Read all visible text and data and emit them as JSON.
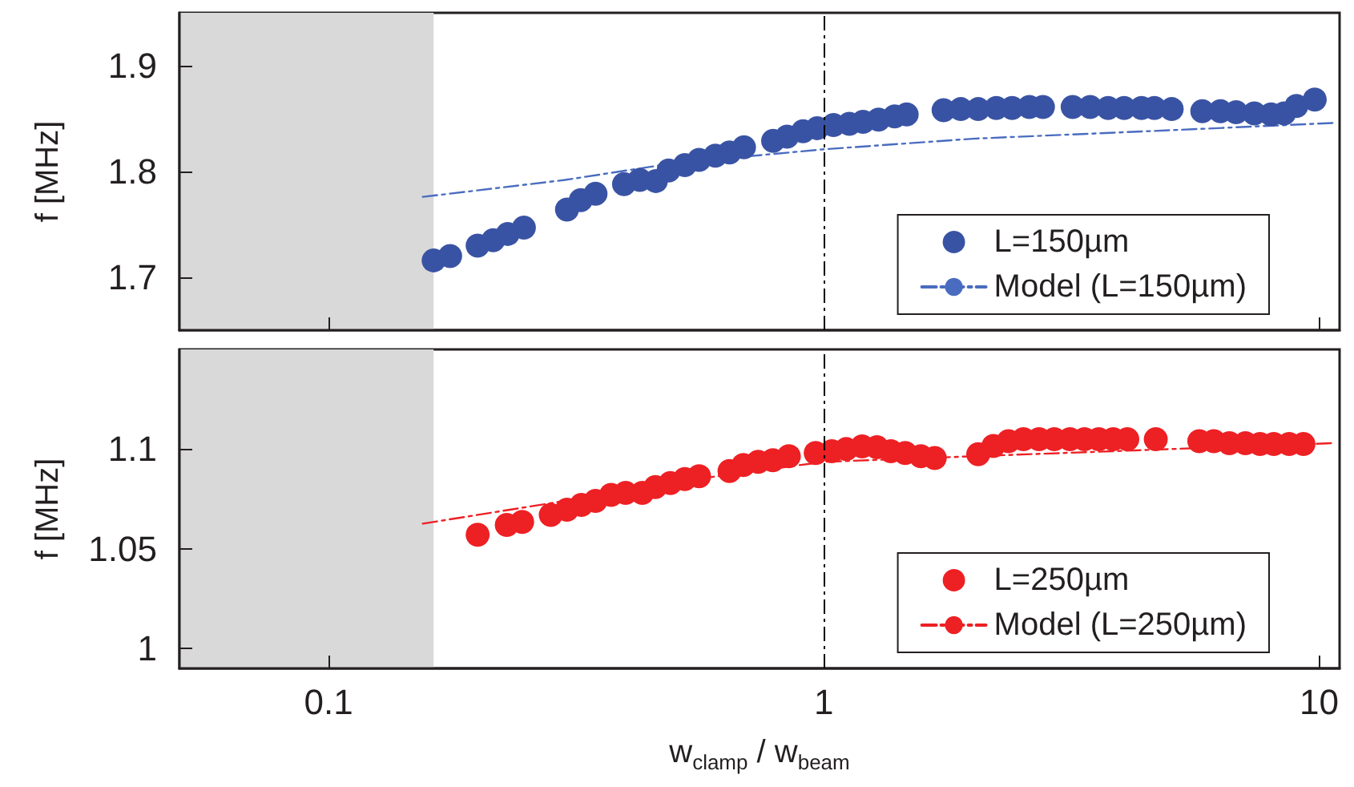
{
  "chart_data": [
    {
      "type": "scatter",
      "ylabel": "f [MHz]",
      "log": "x",
      "xlim": [
        0.05,
        11
      ],
      "xticks": [
        {
          "value": 0.1,
          "label": null
        },
        {
          "value": 1,
          "label": null
        },
        {
          "value": 10,
          "label": null
        }
      ],
      "ylim": [
        1.65,
        1.95
      ],
      "yticks": [
        1.7,
        1.8,
        1.9
      ],
      "tick_labels": "y",
      "grid": false,
      "legend": "bottom right",
      "marker": "circle",
      "series": [
        {
          "name": "L=150µm",
          "color": "#3953a4",
          "x": [
            0.163,
            0.176,
            0.2,
            0.215,
            0.23,
            0.248,
            0.303,
            0.323,
            0.346,
            0.395,
            0.425,
            0.458,
            0.486,
            0.524,
            0.56,
            0.604,
            0.645,
            0.69,
            0.79,
            0.843,
            0.908,
            0.97,
            1.046,
            1.126,
            1.2,
            1.29,
            1.39,
            1.47,
            1.745,
            1.89,
            2.05,
            2.23,
            2.4,
            2.6,
            2.77,
            3.18,
            3.45,
            3.75,
            4.04,
            4.38,
            4.65,
            5.04,
            5.81,
            6.32,
            6.8,
            7.4,
            8.0,
            8.5,
            9.0,
            9.8
          ],
          "values": [
            1.716,
            1.72,
            1.73,
            1.735,
            1.741,
            1.747,
            1.764,
            1.773,
            1.779,
            1.788,
            1.792,
            1.791,
            1.801,
            1.806,
            1.811,
            1.815,
            1.818,
            1.823,
            1.829,
            1.833,
            1.838,
            1.841,
            1.844,
            1.845,
            1.847,
            1.849,
            1.852,
            1.854,
            1.858,
            1.859,
            1.859,
            1.86,
            1.86,
            1.861,
            1.861,
            1.861,
            1.861,
            1.86,
            1.86,
            1.86,
            1.86,
            1.859,
            1.857,
            1.857,
            1.856,
            1.855,
            1.854,
            1.855,
            1.862,
            1.868
          ]
        },
        {
          "name": "Model (L=150µm)",
          "type": "line",
          "color": "#4a6cc0",
          "marker": "none",
          "line_style": "dashdot",
          "x": [
            0.155,
            0.3,
            0.5,
            1,
            2,
            5,
            10.8
          ],
          "values": [
            1.776,
            1.792,
            1.808,
            1.821,
            1.831,
            1.839,
            1.846
          ]
        }
      ],
      "ref_lines": [
        {
          "axis": "x",
          "value": 1,
          "color": "#000000",
          "line_style": "dashdot"
        }
      ],
      "bands": [
        {
          "axis": "x",
          "from": 0.05,
          "to": 0.163,
          "color": "#d9d9d9"
        }
      ]
    },
    {
      "type": "scatter",
      "xlabel": "w$_{clamp}$ / w$_{beam}$",
      "ylabel": "f [MHz]",
      "log": "x",
      "xlim": [
        0.05,
        11
      ],
      "xticks": [
        0.1,
        1,
        10
      ],
      "ylim": [
        0.99,
        1.15
      ],
      "yticks": [
        1,
        1.05,
        1.1
      ],
      "grid": false,
      "legend": "bottom right",
      "marker": "circle",
      "series": [
        {
          "name": "L=250µm",
          "color": "#ed2024",
          "x": [
            0.2,
            0.229,
            0.246,
            0.281,
            0.303,
            0.324,
            0.346,
            0.372,
            0.398,
            0.43,
            0.457,
            0.49,
            0.524,
            0.56,
            0.645,
            0.688,
            0.737,
            0.789,
            0.85,
            0.963,
            1.038,
            1.11,
            1.195,
            1.28,
            1.366,
            1.46,
            1.57,
            1.675,
            2.05,
            2.2,
            2.36,
            2.53,
            2.72,
            2.92,
            3.14,
            3.36,
            3.59,
            3.84,
            4.1,
            4.68,
            5.73,
            6.13,
            6.59,
            7.1,
            7.6,
            8.1,
            8.7,
            9.3
          ],
          "values": [
            1.057,
            1.062,
            1.0635,
            1.067,
            1.0696,
            1.072,
            1.074,
            1.077,
            1.078,
            1.078,
            1.081,
            1.083,
            1.085,
            1.0864,
            1.089,
            1.092,
            1.0936,
            1.0944,
            1.0964,
            1.098,
            1.0989,
            1.1,
            1.1014,
            1.101,
            1.0989,
            1.098,
            1.0964,
            1.0955,
            1.0974,
            1.1016,
            1.104,
            1.105,
            1.105,
            1.105,
            1.105,
            1.105,
            1.105,
            1.105,
            1.105,
            1.105,
            1.104,
            1.104,
            1.103,
            1.103,
            1.1026,
            1.1026,
            1.1026,
            1.1026
          ]
        },
        {
          "name": "Model (L=250µm)",
          "type": "line",
          "color": "#ed2024",
          "marker": "none",
          "line_style": "dashdot",
          "x": [
            0.155,
            0.3,
            0.5,
            1,
            2,
            5,
            10.7
          ],
          "values": [
            1.0626,
            1.074,
            1.0835,
            1.0936,
            1.0964,
            1.1,
            1.103
          ]
        }
      ],
      "ref_lines": [
        {
          "axis": "x",
          "value": 1,
          "color": "#000000",
          "line_style": "dashdot"
        }
      ],
      "bands": [
        {
          "axis": "x",
          "from": 0.05,
          "to": 0.163,
          "color": "#d9d9d9"
        }
      ]
    }
  ]
}
